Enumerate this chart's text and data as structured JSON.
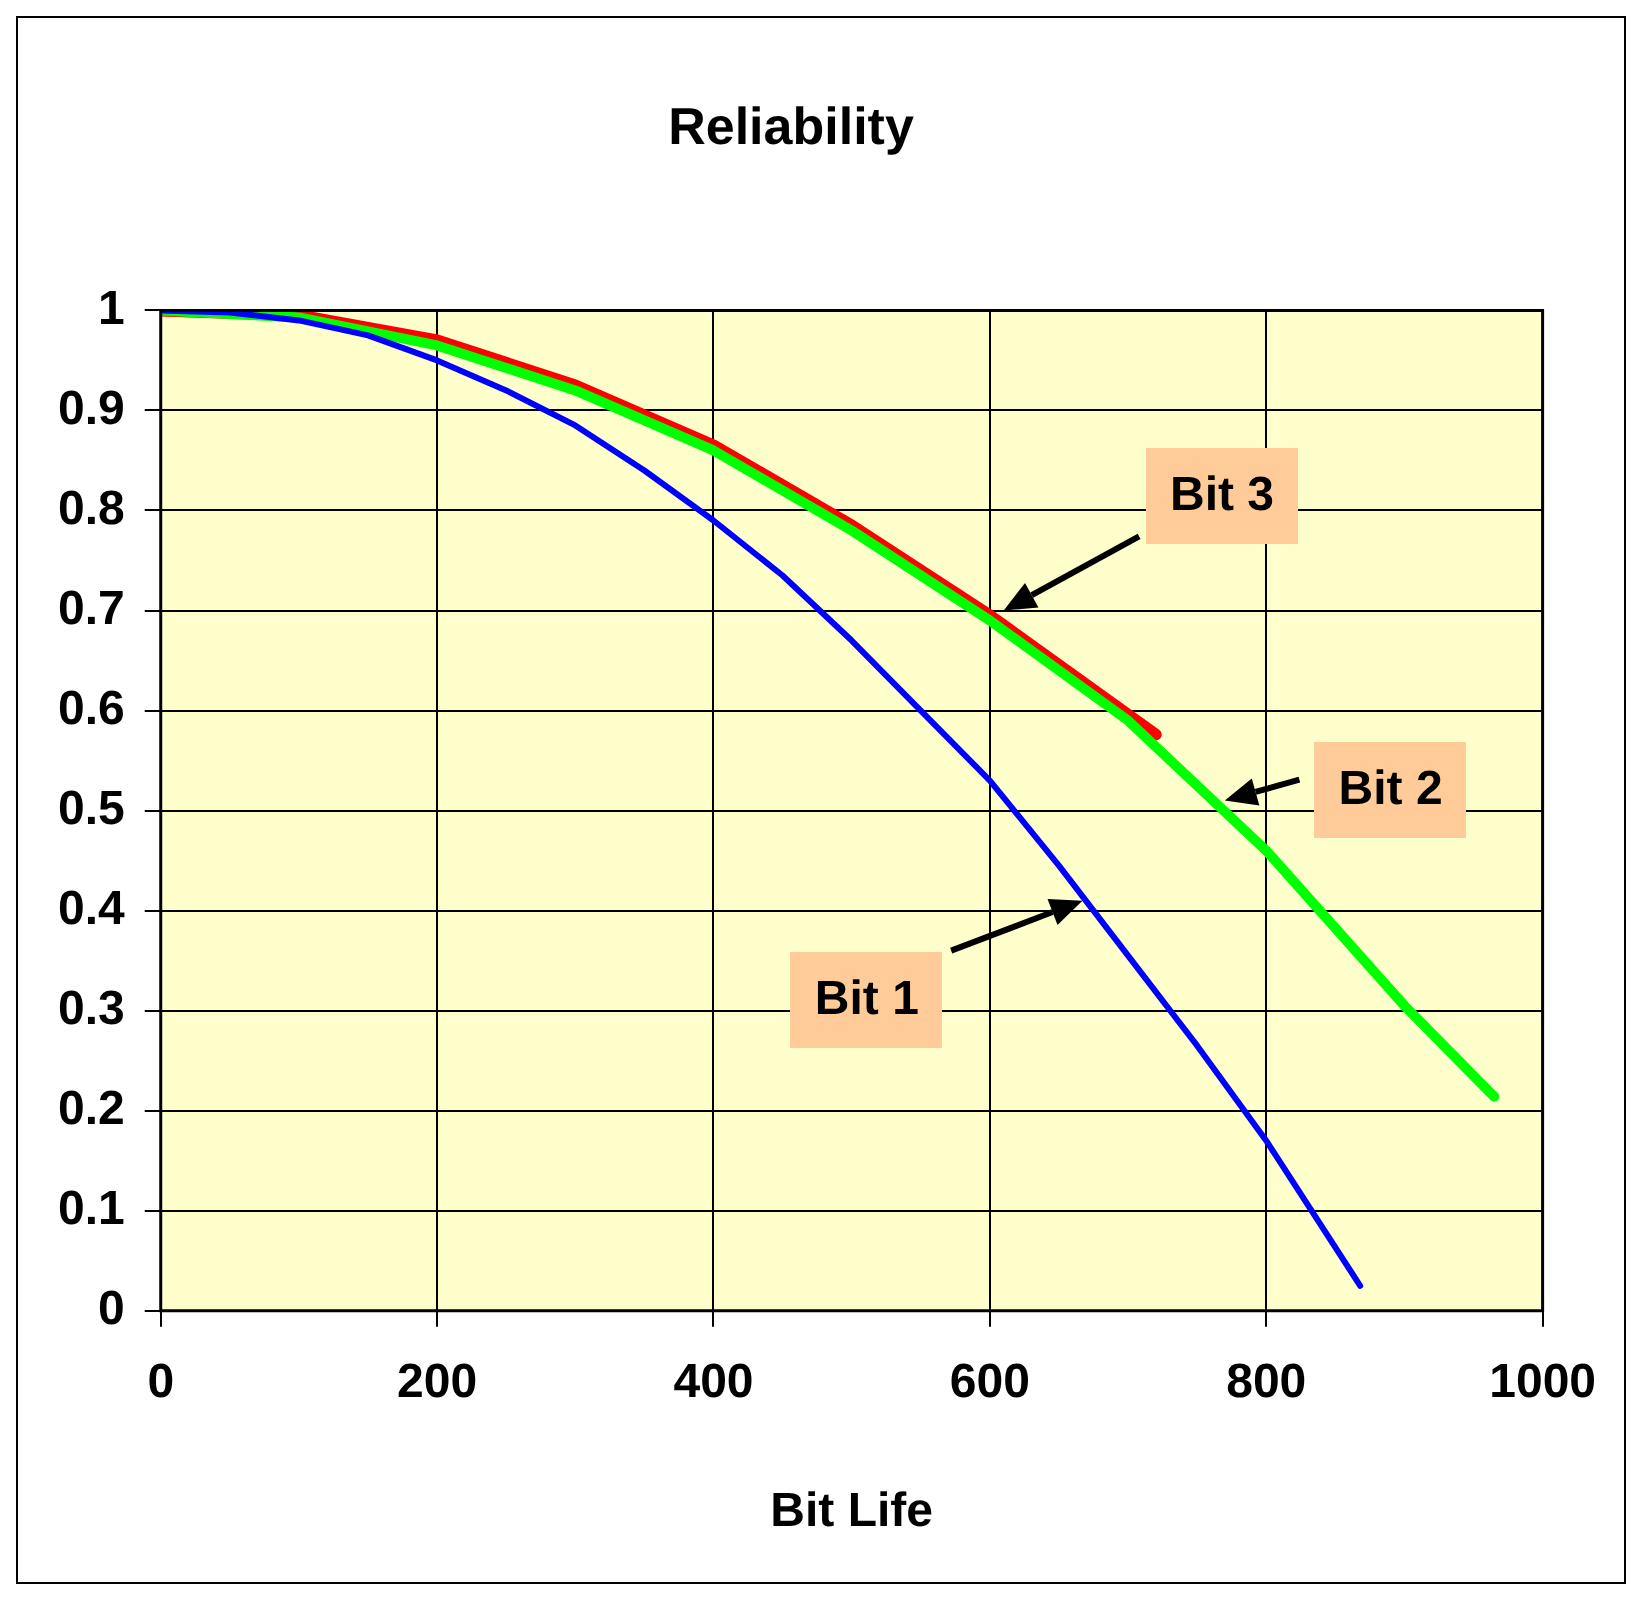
{
  "chart_data": {
    "type": "line",
    "title": "Reliability",
    "xlabel": "Bit Life",
    "xlim": [
      0,
      1000
    ],
    "xticks": [
      0,
      200,
      400,
      600,
      800,
      1000
    ],
    "ylim": [
      0,
      1
    ],
    "yticks": [
      0,
      0.1,
      0.2,
      0.3,
      0.4,
      0.5,
      0.6,
      0.7,
      0.8,
      0.9,
      1
    ],
    "grid": true,
    "legend": false,
    "marker": "none",
    "line_style": "solid",
    "series": [
      {
        "color": "#0000ff",
        "x": [
          0,
          50,
          100,
          150,
          200,
          250,
          300,
          350,
          400,
          450,
          500,
          550,
          600,
          650,
          700,
          750,
          800,
          868
        ],
        "values": [
          1,
          0.998,
          0.99,
          0.975,
          0.95,
          0.92,
          0.885,
          0.84,
          0.79,
          0.735,
          0.67,
          0.6,
          0.53,
          0.445,
          0.355,
          0.265,
          0.17,
          0.025
        ]
      },
      {
        "color": "#00ff00",
        "x": [
          0,
          100,
          200,
          300,
          400,
          500,
          600,
          700,
          800,
          900,
          965
        ],
        "values": [
          1,
          0.993,
          0.965,
          0.92,
          0.86,
          0.78,
          0.69,
          0.59,
          0.46,
          0.305,
          0.214
        ]
      },
      {
        "color": "#ff0000",
        "x": [
          0,
          100,
          200,
          300,
          400,
          500,
          600,
          720
        ],
        "values": [
          1,
          0.995,
          0.97,
          0.925,
          0.865,
          0.785,
          0.695,
          0.576
        ]
      }
    ],
    "annotations": [
      "Bit 3",
      "Bit 2",
      "Bit 1"
    ]
  }
}
